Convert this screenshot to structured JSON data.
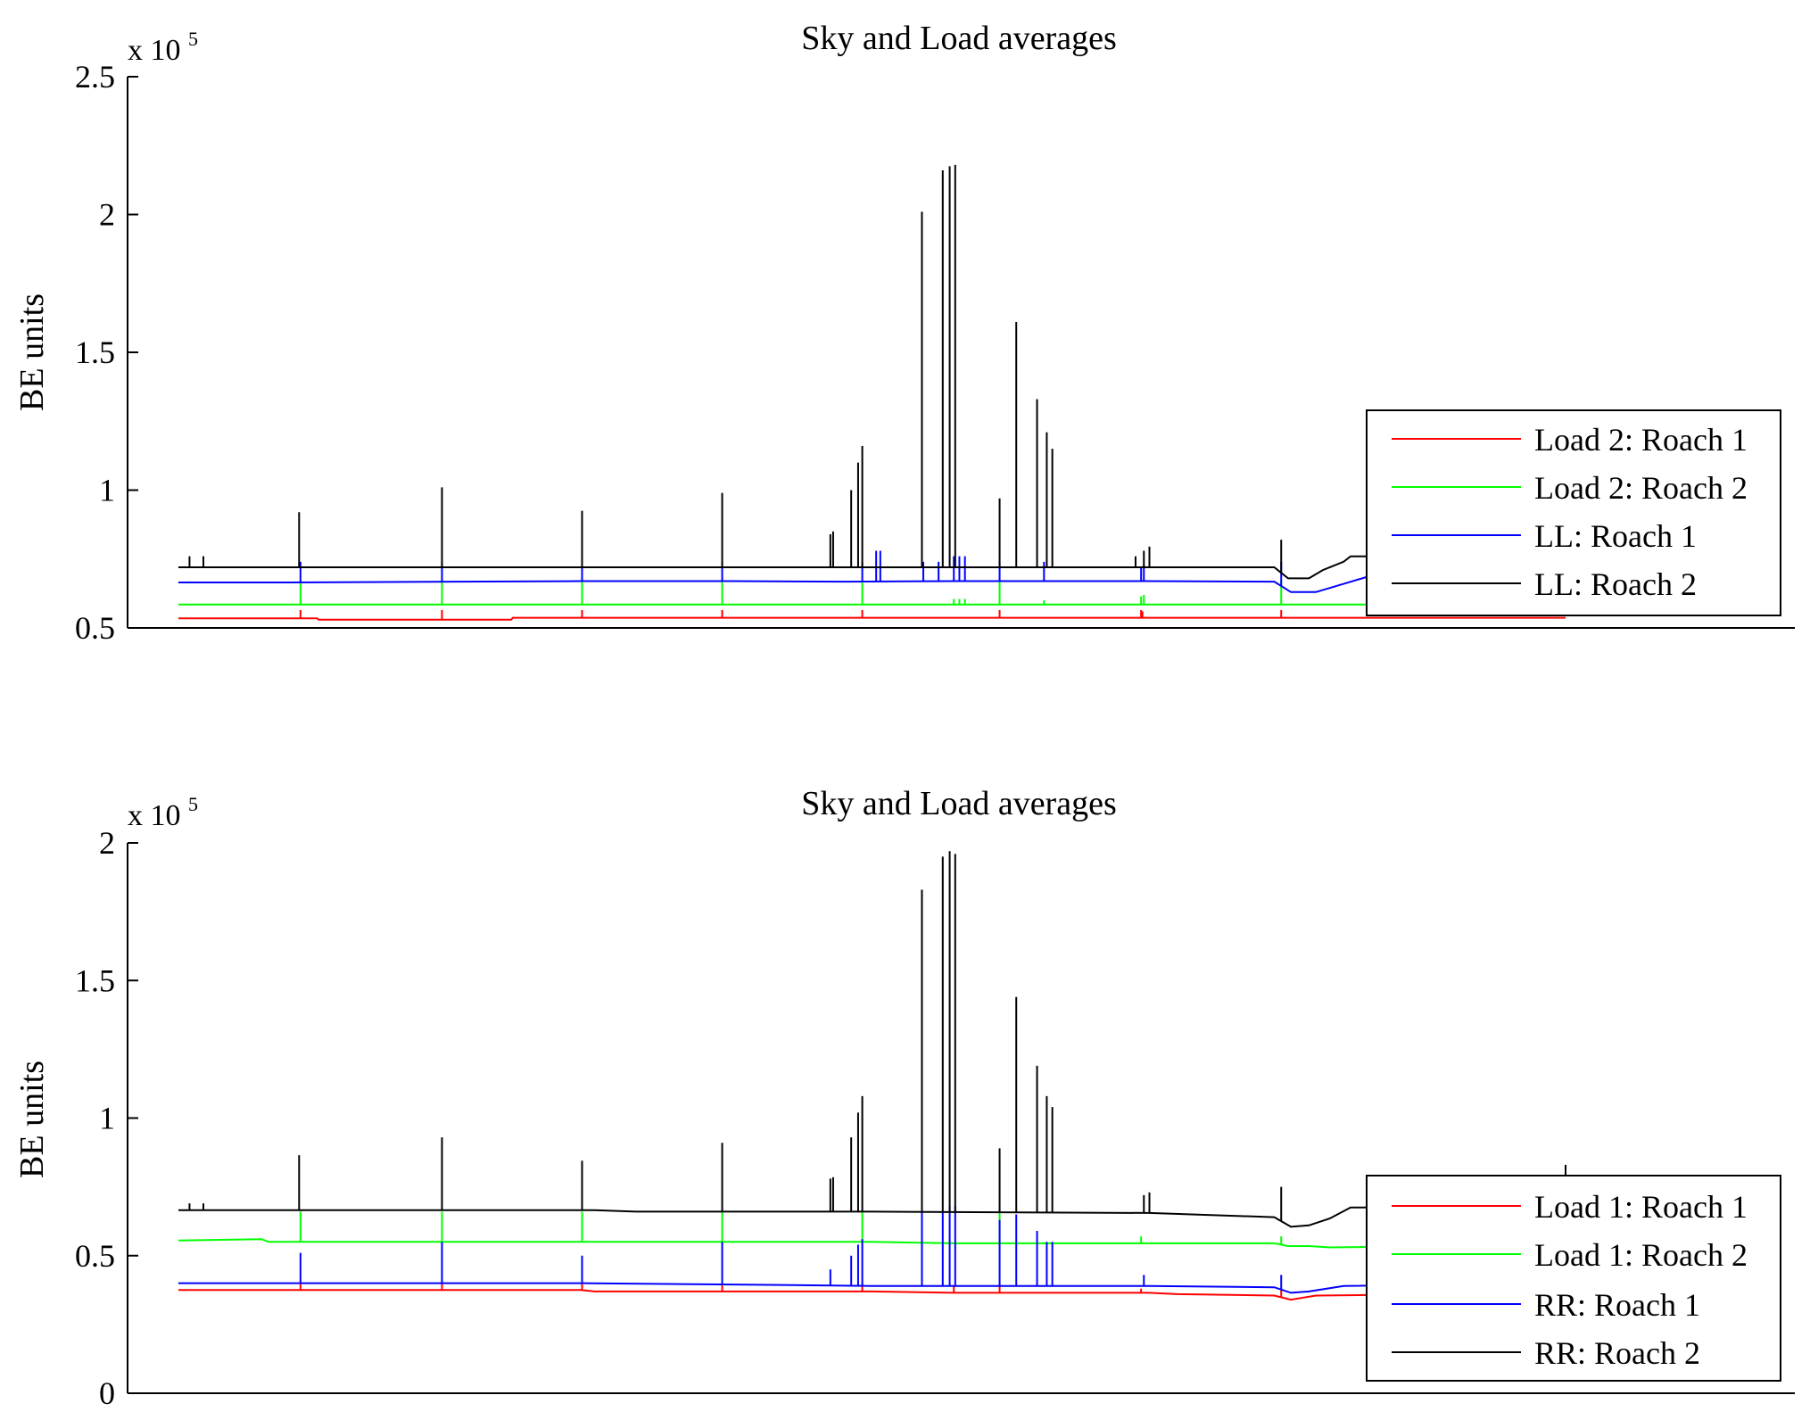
{
  "chart_data": [
    {
      "type": "line",
      "title": "Sky and Load averages",
      "ylabel": "BE units",
      "xlabel": "",
      "y_multiplier_base": "x 10",
      "y_multiplier_exp": "5",
      "ylim": [
        50000,
        250000
      ],
      "xlim": [
        0,
        1000
      ],
      "yticks": [
        50000,
        100000,
        150000,
        200000,
        250000
      ],
      "ytick_labels": [
        "0.5",
        "1",
        "1.5",
        "2",
        "2.5"
      ],
      "legend_position": "right",
      "series": [
        {
          "name": "Load 2: Roach 1",
          "color": "#ff0000",
          "baseline": [
            [
              0,
              53500
            ],
            [
              100,
              53500
            ],
            [
              101,
              53000
            ],
            [
              240,
              53000
            ],
            [
              241,
              53700
            ],
            [
              1000,
              53700
            ]
          ],
          "spikes": [
            [
              88,
              56500
            ],
            [
              190,
              56500
            ],
            [
              291,
              56500
            ],
            [
              392,
              56500
            ],
            [
              493,
              56500
            ],
            [
              592,
              56500
            ],
            [
              694,
              56500
            ],
            [
              695,
              56000
            ],
            [
              795,
              56500
            ]
          ]
        },
        {
          "name": "Load 2: Roach 2",
          "color": "#00ff00",
          "baseline": [
            [
              0,
              58500
            ],
            [
              1000,
              58500
            ]
          ],
          "spikes": [
            [
              88,
              67000
            ],
            [
              190,
              67000
            ],
            [
              291,
              67000
            ],
            [
              392,
              67000
            ],
            [
              493,
              67000
            ],
            [
              559,
              60500
            ],
            [
              563,
              60500
            ],
            [
              567,
              60500
            ],
            [
              592,
              67000
            ],
            [
              624,
              60000
            ],
            [
              694,
              61500
            ],
            [
              696,
              62000
            ],
            [
              795,
              67000
            ]
          ]
        },
        {
          "name": "LL: Roach 1",
          "color": "#0000ff",
          "baseline": [
            [
              0,
              66500
            ],
            [
              80,
              66500
            ],
            [
              200,
              66800
            ],
            [
              290,
              67000
            ],
            [
              400,
              67000
            ],
            [
              480,
              66800
            ],
            [
              560,
              67000
            ],
            [
              700,
              67000
            ],
            [
              790,
              66800
            ],
            [
              802,
              63000
            ],
            [
              820,
              63000
            ],
            [
              840,
              66000
            ],
            [
              860,
              69000
            ],
            [
              1000,
              69000
            ]
          ],
          "spikes": [
            [
              88,
              74000
            ],
            [
              190,
              74000
            ],
            [
              291,
              74000
            ],
            [
              392,
              74000
            ],
            [
              493,
              74000
            ],
            [
              503,
              78000
            ],
            [
              506,
              78000
            ],
            [
              537,
              74000
            ],
            [
              548,
              74000
            ],
            [
              559,
              76000
            ],
            [
              563,
              76000
            ],
            [
              567,
              76000
            ],
            [
              592,
              74000
            ],
            [
              624,
              74000
            ],
            [
              694,
              72000
            ],
            [
              696,
              73000
            ],
            [
              795,
              74000
            ]
          ]
        },
        {
          "name": "LL: Roach 2",
          "color": "#000000",
          "baseline": [
            [
              0,
              72000
            ],
            [
              780,
              72000
            ],
            [
              790,
              72000
            ],
            [
              795,
              70000
            ],
            [
              800,
              68000
            ],
            [
              815,
              68000
            ],
            [
              825,
              71000
            ],
            [
              840,
              74000
            ],
            [
              845,
              76000
            ],
            [
              1000,
              76000
            ]
          ],
          "spikes": [
            [
              8,
              76000
            ],
            [
              18,
              76000
            ],
            [
              87,
              92000
            ],
            [
              190,
              101000
            ],
            [
              291,
              92500
            ],
            [
              392,
              99000
            ],
            [
              470,
              84000
            ],
            [
              472,
              85000
            ],
            [
              485,
              100000
            ],
            [
              490,
              110000
            ],
            [
              493,
              116000
            ],
            [
              536,
              201000
            ],
            [
              551,
              216000
            ],
            [
              556,
              217500
            ],
            [
              560,
              218000
            ],
            [
              592,
              97000
            ],
            [
              604,
              161000
            ],
            [
              619,
              133000
            ],
            [
              626,
              121000
            ],
            [
              630,
              115000
            ],
            [
              690,
              76000
            ],
            [
              696,
              78000
            ],
            [
              700,
              79500
            ],
            [
              795,
              82000
            ]
          ]
        }
      ]
    },
    {
      "type": "line",
      "title": "Sky and Load averages",
      "ylabel": "BE units",
      "xlabel": "",
      "y_multiplier_base": "x 10",
      "y_multiplier_exp": "5",
      "ylim": [
        0,
        200000
      ],
      "xlim": [
        0,
        1000
      ],
      "yticks": [
        0,
        50000,
        100000,
        150000,
        200000
      ],
      "ytick_labels": [
        "0",
        "0.5",
        "1",
        "1.5",
        "2"
      ],
      "legend_position": "right",
      "series": [
        {
          "name": "Load 1: Roach 1",
          "color": "#ff0000",
          "baseline": [
            [
              0,
              37500
            ],
            [
              290,
              37500
            ],
            [
              300,
              37000
            ],
            [
              500,
              37000
            ],
            [
              560,
              36500
            ],
            [
              700,
              36500
            ],
            [
              720,
              36000
            ],
            [
              790,
              35500
            ],
            [
              802,
              34000
            ],
            [
              820,
              35500
            ],
            [
              1000,
              36500
            ]
          ],
          "spikes": [
            [
              88,
              40000
            ],
            [
              190,
              40000
            ],
            [
              291,
              40000
            ],
            [
              392,
              40000
            ],
            [
              493,
              40000
            ],
            [
              559,
              39000
            ],
            [
              592,
              40000
            ],
            [
              694,
              38000
            ],
            [
              795,
              38000
            ]
          ]
        },
        {
          "name": "Load 1: Roach 2",
          "color": "#00ff00",
          "baseline": [
            [
              0,
              55500
            ],
            [
              60,
              56000
            ],
            [
              65,
              55000
            ],
            [
              500,
              55000
            ],
            [
              560,
              54500
            ],
            [
              790,
              54500
            ],
            [
              800,
              53500
            ],
            [
              815,
              53500
            ],
            [
              830,
              53000
            ],
            [
              1000,
              54000
            ]
          ],
          "spikes": [
            [
              88,
              66000
            ],
            [
              190,
              66000
            ],
            [
              291,
              66000
            ],
            [
              392,
              66000
            ],
            [
              493,
              66000
            ],
            [
              592,
              66000
            ],
            [
              694,
              57000
            ],
            [
              795,
              57000
            ]
          ]
        },
        {
          "name": "RR: Roach 1",
          "color": "#0000ff",
          "baseline": [
            [
              0,
              40000
            ],
            [
              290,
              40000
            ],
            [
              400,
              39500
            ],
            [
              500,
              39000
            ],
            [
              700,
              39000
            ],
            [
              790,
              38500
            ],
            [
              802,
              36500
            ],
            [
              815,
              37000
            ],
            [
              840,
              39000
            ],
            [
              1000,
              40000
            ]
          ],
          "spikes": [
            [
              88,
              51000
            ],
            [
              190,
              55000
            ],
            [
              291,
              50000
            ],
            [
              392,
              55000
            ],
            [
              470,
              45000
            ],
            [
              485,
              50000
            ],
            [
              490,
              54000
            ],
            [
              493,
              56000
            ],
            [
              536,
              66000
            ],
            [
              551,
              66000
            ],
            [
              556,
              68000
            ],
            [
              560,
              68000
            ],
            [
              592,
              63000
            ],
            [
              604,
              65000
            ],
            [
              619,
              59000
            ],
            [
              626,
              55000
            ],
            [
              630,
              55000
            ],
            [
              696,
              43000
            ],
            [
              795,
              43000
            ]
          ]
        },
        {
          "name": "RR: Roach 2",
          "color": "#000000",
          "baseline": [
            [
              0,
              66500
            ],
            [
              300,
              66500
            ],
            [
              330,
              66000
            ],
            [
              500,
              66000
            ],
            [
              700,
              65500
            ],
            [
              790,
              64000
            ],
            [
              802,
              60500
            ],
            [
              815,
              61000
            ],
            [
              830,
              63500
            ],
            [
              845,
              67500
            ],
            [
              1000,
              68000
            ]
          ],
          "spikes": [
            [
              8,
              69000
            ],
            [
              18,
              69000
            ],
            [
              87,
              86500
            ],
            [
              190,
              93000
            ],
            [
              291,
              84500
            ],
            [
              392,
              91000
            ],
            [
              470,
              78000
            ],
            [
              472,
              78500
            ],
            [
              485,
              93000
            ],
            [
              490,
              102000
            ],
            [
              493,
              108000
            ],
            [
              536,
              183000
            ],
            [
              551,
              195000
            ],
            [
              556,
              197000
            ],
            [
              560,
              196000
            ],
            [
              592,
              89000
            ],
            [
              604,
              144000
            ],
            [
              619,
              119000
            ],
            [
              626,
              108000
            ],
            [
              630,
              104000
            ],
            [
              696,
              72000
            ],
            [
              700,
              73000
            ],
            [
              795,
              75000
            ],
            [
              1000,
              83000
            ]
          ]
        }
      ]
    }
  ]
}
